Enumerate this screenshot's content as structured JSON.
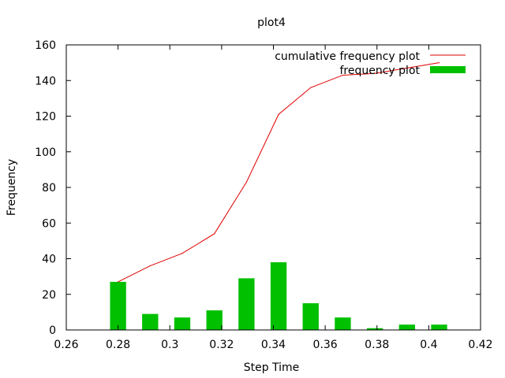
{
  "chart_data": {
    "type": "bar",
    "title": "plot4",
    "xlabel": "Step Time",
    "ylabel": "Frequency",
    "xlim": [
      0.26,
      0.42
    ],
    "ylim": [
      0,
      160
    ],
    "xticks": [
      0.26,
      0.28,
      0.3,
      0.32,
      0.34,
      0.36,
      0.38,
      0.4,
      0.42
    ],
    "xtick_labels": [
      "0.26",
      "0.28",
      "0.3",
      "0.32",
      "0.34",
      "0.36",
      "0.38",
      "0.4",
      "0.42"
    ],
    "yticks": [
      0,
      20,
      40,
      60,
      80,
      100,
      120,
      140,
      160
    ],
    "ytick_labels": [
      "0",
      "20",
      "40",
      "60",
      "80",
      "100",
      "120",
      "140",
      "160"
    ],
    "legend_position": "top-right",
    "grid": false,
    "series": [
      {
        "name": "cumulative frequency plot",
        "type": "line",
        "color": "#e00000",
        "x": [
          0.28,
          0.2924,
          0.3048,
          0.3172,
          0.3296,
          0.342,
          0.3544,
          0.3668,
          0.3792,
          0.3916,
          0.404
        ],
        "y": [
          27,
          36,
          43,
          54,
          83,
          121,
          136,
          143,
          144,
          147,
          150
        ]
      },
      {
        "name": "frequency plot",
        "type": "bar",
        "color": "#00c000",
        "x": [
          0.28,
          0.2924,
          0.3048,
          0.3172,
          0.3296,
          0.342,
          0.3544,
          0.3668,
          0.3792,
          0.3916,
          0.404
        ],
        "y": [
          27,
          9,
          7,
          11,
          29,
          38,
          15,
          7,
          1,
          3,
          3
        ],
        "bar_width": 0.0062
      }
    ]
  }
}
